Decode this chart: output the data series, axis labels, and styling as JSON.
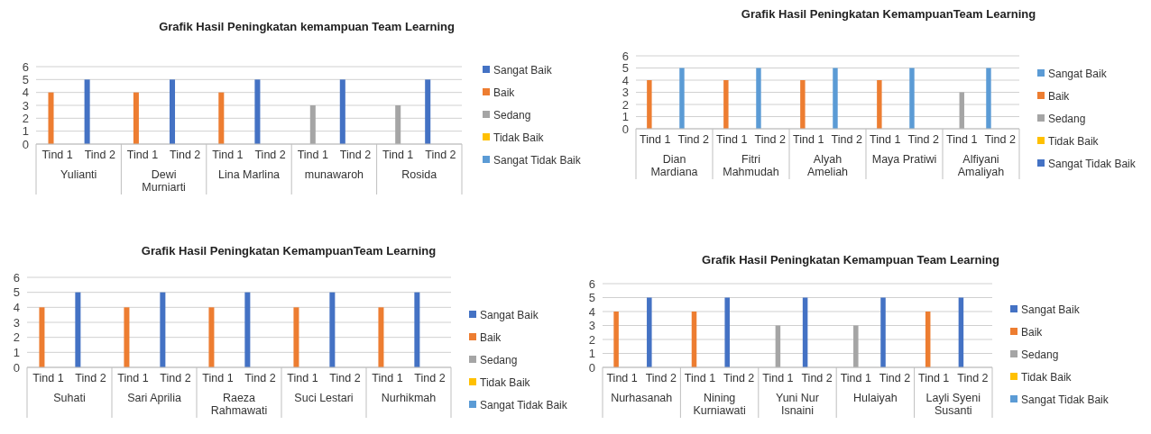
{
  "chart_data": [
    {
      "type": "bar",
      "title": "Grafik Hasil Peningkatan kemampuan Team Learning",
      "categories": [
        "Tind 1",
        "Tind 2",
        "Tind 1",
        "Tind 2",
        "Tind 1",
        "Tind 2",
        "Tind 1",
        "Tind 2",
        "Tind 1",
        "Tind 2"
      ],
      "annotations": [
        "Yulianti",
        "Dewi Murniarti",
        "Lina Marlina",
        "munawaroh",
        "Rosida"
      ],
      "ylim": [
        0,
        6
      ],
      "yticks": [
        0,
        1,
        2,
        3,
        4,
        5,
        6
      ],
      "grid": "y",
      "legend": "right",
      "series": [
        {
          "name": "Sangat Baik",
          "color": "#4472c4",
          "values": [
            null,
            5,
            null,
            5,
            null,
            5,
            null,
            5,
            null,
            5
          ]
        },
        {
          "name": "Baik",
          "color": "#ed7d31",
          "values": [
            4,
            null,
            4,
            null,
            4,
            null,
            null,
            null,
            null,
            null
          ]
        },
        {
          "name": "Sedang",
          "color": "#a5a5a5",
          "values": [
            null,
            null,
            null,
            null,
            null,
            null,
            3,
            null,
            3,
            null
          ]
        },
        {
          "name": "Tidak Baik",
          "color": "#ffc000",
          "values": [
            null,
            null,
            null,
            null,
            null,
            null,
            null,
            null,
            null,
            null
          ]
        },
        {
          "name": "Sangat Tidak Baik",
          "color": "#5b9bd5",
          "values": [
            null,
            null,
            null,
            null,
            null,
            null,
            null,
            null,
            null,
            null
          ]
        }
      ]
    },
    {
      "type": "bar",
      "title": "Grafik Hasil Peningkatan KemampuanTeam Learning",
      "categories": [
        "Tind 1",
        "Tind 2",
        "Tind 1",
        "Tind 2",
        "Tind 1",
        "Tind 2",
        "Tind 1",
        "Tind 2",
        "Tind 1",
        "Tind 2"
      ],
      "annotations": [
        "Dian Mardiana",
        "Fitri Mahmudah",
        "Alyah Ameliah",
        "Maya Pratiwi",
        "Alfiyani Amaliyah"
      ],
      "ylim": [
        0,
        6
      ],
      "yticks": [
        0,
        1,
        2,
        3,
        4,
        5,
        6
      ],
      "grid": "y",
      "legend": "right",
      "series": [
        {
          "name": "Sangat Baik",
          "color": "#5b9bd5",
          "values": [
            null,
            5,
            null,
            5,
            null,
            5,
            null,
            5,
            null,
            5
          ]
        },
        {
          "name": "Baik",
          "color": "#ed7d31",
          "values": [
            4,
            null,
            4,
            null,
            4,
            null,
            4,
            null,
            null,
            null
          ]
        },
        {
          "name": "Sedang",
          "color": "#a5a5a5",
          "values": [
            null,
            null,
            null,
            null,
            null,
            null,
            null,
            null,
            3,
            null
          ]
        },
        {
          "name": "Tidak Baik",
          "color": "#ffc000",
          "values": [
            null,
            null,
            null,
            null,
            null,
            null,
            null,
            null,
            null,
            null
          ]
        },
        {
          "name": "Sangat Tidak Baik",
          "color": "#4472c4",
          "values": [
            null,
            null,
            null,
            null,
            null,
            null,
            null,
            null,
            null,
            null
          ]
        }
      ]
    },
    {
      "type": "bar",
      "title": "Grafik Hasil Peningkatan KemampuanTeam Learning",
      "categories": [
        "Tind 1",
        "Tind 2",
        "Tind 1",
        "Tind 2",
        "Tind 1",
        "Tind 2",
        "Tind 1",
        "Tind 2",
        "Tind 1",
        "Tind 2"
      ],
      "annotations": [
        "Suhati",
        "Sari Aprilia",
        "Raeza Rahmawati",
        "Suci Lestari",
        "Nurhikmah"
      ],
      "ylim": [
        0,
        6
      ],
      "yticks": [
        0,
        1,
        2,
        3,
        4,
        5,
        6
      ],
      "grid": "y",
      "legend": "right",
      "series": [
        {
          "name": "Sangat Baik",
          "color": "#4472c4",
          "values": [
            null,
            5,
            null,
            5,
            null,
            5,
            null,
            5,
            null,
            5
          ]
        },
        {
          "name": "Baik",
          "color": "#ed7d31",
          "values": [
            4,
            null,
            4,
            null,
            4,
            null,
            4,
            null,
            4,
            null
          ]
        },
        {
          "name": "Sedang",
          "color": "#a5a5a5",
          "values": [
            null,
            null,
            null,
            null,
            null,
            null,
            null,
            null,
            null,
            null
          ]
        },
        {
          "name": "Tidak Baik",
          "color": "#ffc000",
          "values": [
            null,
            null,
            null,
            null,
            null,
            null,
            null,
            null,
            null,
            null
          ]
        },
        {
          "name": "Sangat Tidak Baik",
          "color": "#5b9bd5",
          "values": [
            null,
            null,
            null,
            null,
            null,
            null,
            null,
            null,
            null,
            null
          ]
        }
      ]
    },
    {
      "type": "bar",
      "title": "Grafik Hasil Peningkatan Kemampuan Team Learning",
      "categories": [
        "Tind 1",
        "Tind 2",
        "Tind 1",
        "Tind 2",
        "Tind 1",
        "Tind 2",
        "Tind 1",
        "Tind 2",
        "Tind 1",
        "Tind 2"
      ],
      "annotations": [
        "Nurhasanah",
        "Nining Kurniawati",
        "Yuni Nur Isnaini",
        "Hulaiyah",
        "Layli Syeni Susanti"
      ],
      "ylim": [
        0,
        6
      ],
      "yticks": [
        0,
        1,
        2,
        3,
        4,
        5,
        6
      ],
      "grid": "y",
      "legend": "right",
      "series": [
        {
          "name": "Sangat Baik",
          "color": "#4472c4",
          "values": [
            null,
            5,
            null,
            5,
            null,
            5,
            null,
            5,
            null,
            5
          ]
        },
        {
          "name": "Baik",
          "color": "#ed7d31",
          "values": [
            4,
            null,
            4,
            null,
            null,
            null,
            null,
            null,
            4,
            null
          ]
        },
        {
          "name": "Sedang",
          "color": "#a5a5a5",
          "values": [
            null,
            null,
            null,
            null,
            3,
            null,
            3,
            null,
            null,
            null
          ]
        },
        {
          "name": "Tidak Baik",
          "color": "#ffc000",
          "values": [
            null,
            null,
            null,
            null,
            null,
            null,
            null,
            null,
            null,
            null
          ]
        },
        {
          "name": "Sangat Tidak Baik",
          "color": "#5b9bd5",
          "values": [
            null,
            null,
            null,
            null,
            null,
            null,
            null,
            null,
            null,
            null
          ]
        }
      ]
    }
  ]
}
